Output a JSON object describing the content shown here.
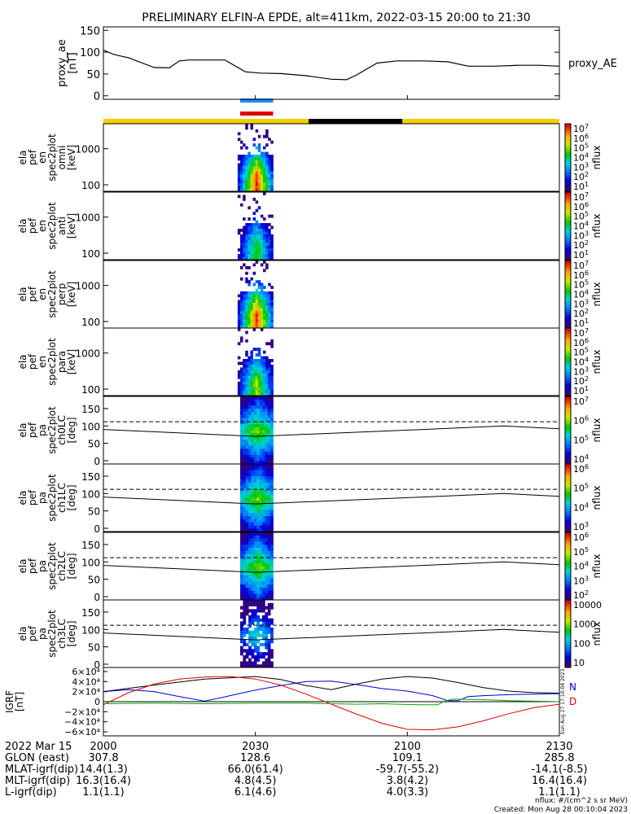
{
  "chart_data": {
    "type": "line",
    "title": "PRELIMINARY ELFIN-A EPDE, alt=411km, 2022-03-15 20:00 to 21:30",
    "x_ticks": [
      "2000",
      "2030",
      "2100",
      "2130"
    ],
    "x_minutes": [
      0,
      30,
      60,
      90
    ],
    "proxy_ae": {
      "ylabel_lines": [
        "proxy_ae",
        "[nT]"
      ],
      "yticks": [
        "0",
        "50",
        "100",
        "150"
      ],
      "ytick_values": [
        0,
        50,
        100,
        150
      ],
      "ylim": [
        -8,
        158
      ],
      "legend": "proxy_AE",
      "series": [
        {
          "name": "proxy_AE",
          "x": [
            0,
            2,
            5,
            10,
            13,
            15,
            17,
            20,
            24,
            28,
            31,
            35,
            40,
            45,
            48,
            50,
            54,
            58,
            63,
            68,
            72,
            77,
            82,
            86,
            90
          ],
          "y": [
            105,
            95,
            87,
            65,
            64,
            80,
            82,
            82,
            82,
            55,
            52,
            51,
            46,
            38,
            37,
            48,
            75,
            80,
            80,
            78,
            68,
            68,
            70,
            70,
            68
          ]
        }
      ]
    },
    "orbit_bars": {
      "yellow_spans": [
        [
          0,
          40.5
        ],
        [
          59,
          90
        ]
      ],
      "black_spans": [
        [
          40.5,
          59
        ]
      ],
      "science_blue": [
        27,
        33.5
      ],
      "science_red": [
        27,
        33.5
      ]
    },
    "spectrograms": [
      {
        "label_lines": [
          "ela",
          "pef",
          "en",
          "spec2plot",
          "omni",
          "[keV]"
        ],
        "yticks": [
          "100",
          "1000"
        ],
        "ytick_values": [
          100,
          1000
        ],
        "colorbar": [
          "10^1",
          "10^2",
          "10^3",
          "10^4",
          "10^5",
          "10^6",
          "10^7"
        ],
        "colorbar_label": "nflux"
      },
      {
        "label_lines": [
          "ela",
          "pef",
          "en",
          "spec2plot",
          "anti",
          "[keV]"
        ],
        "yticks": [
          "100",
          "1000"
        ],
        "ytick_values": [
          100,
          1000
        ],
        "colorbar": [
          "10^1",
          "10^2",
          "10^3",
          "10^4",
          "10^5",
          "10^6",
          "10^7"
        ],
        "colorbar_label": "nflux"
      },
      {
        "label_lines": [
          "ela",
          "pef",
          "en",
          "spec2plot",
          "perp",
          "[keV]"
        ],
        "yticks": [
          "100",
          "1000"
        ],
        "ytick_values": [
          100,
          1000
        ],
        "colorbar": [
          "10^1",
          "10^2",
          "10^3",
          "10^4",
          "10^5",
          "10^6",
          "10^7"
        ],
        "colorbar_label": "nflux"
      },
      {
        "label_lines": [
          "ela",
          "pef",
          "en",
          "spec2plot",
          "para",
          "[keV]"
        ],
        "yticks": [
          "100",
          "1000"
        ],
        "ytick_values": [
          100,
          1000
        ],
        "colorbar": [
          "10^1",
          "10^2",
          "10^3",
          "10^4",
          "10^5",
          "10^6",
          "10^7"
        ],
        "colorbar_label": "nflux"
      }
    ],
    "pitch_angle": [
      {
        "label_lines": [
          "ela",
          "pef",
          "pa",
          "spec2plot",
          "ch0LC",
          "[deg]"
        ],
        "yticks": [
          "0",
          "50",
          "100",
          "150"
        ],
        "colorbar": [
          "10^4",
          "10^5",
          "10^6",
          "10^7"
        ],
        "colorbar_label": "nflux"
      },
      {
        "label_lines": [
          "ela",
          "pef",
          "pa",
          "spec2plot",
          "ch1LC",
          "[deg]"
        ],
        "yticks": [
          "0",
          "50",
          "100",
          "150"
        ],
        "colorbar": [
          "10^3",
          "10^4",
          "10^5",
          "10^6"
        ],
        "colorbar_label": "nflux"
      },
      {
        "label_lines": [
          "ela",
          "pef",
          "pa",
          "spec2plot",
          "ch2LC",
          "[deg]"
        ],
        "yticks": [
          "0",
          "50",
          "100",
          "150"
        ],
        "colorbar": [
          "10^2",
          "10^3",
          "10^4",
          "10^5",
          "10^6"
        ],
        "colorbar_label": "nflux"
      },
      {
        "label_lines": [
          "ela",
          "pef",
          "pa",
          "spec2plot",
          "ch3LC",
          "[deg]"
        ],
        "yticks": [
          "0",
          "50",
          "100",
          "150"
        ],
        "colorbar": [
          "10",
          "100",
          "1000",
          "10000"
        ],
        "colorbar_label": "nflux"
      }
    ],
    "loss_cone": {
      "solid_x": [
        0,
        30,
        60,
        79,
        90
      ],
      "solid_y": [
        90,
        70,
        88,
        100,
        92
      ],
      "dashed_y": 112
    },
    "igrf": {
      "ylabel_lines": [
        "IGRF",
        "[nT]"
      ],
      "yticks": [
        "6×10⁴",
        "4×10⁴",
        "2×10⁴",
        "0",
        "−2×10⁴",
        "−4×10⁴",
        "−6×10⁴"
      ],
      "ytick_values": [
        60000,
        40000,
        20000,
        0,
        -20000,
        -40000,
        -60000
      ],
      "ylim": [
        -68000,
        68000
      ],
      "legend": [
        "N",
        "D"
      ],
      "side_stamp": "Sun Aug 27 17:10:04 2023",
      "series": [
        {
          "name": "black",
          "color": "#000000",
          "x": [
            0,
            10,
            20,
            30,
            35,
            40,
            45,
            50,
            55,
            60,
            65,
            70,
            75,
            80,
            85,
            90
          ],
          "y": [
            20000,
            33000,
            45000,
            50000,
            44000,
            32000,
            24000,
            35000,
            45000,
            50000,
            47000,
            38000,
            28000,
            21000,
            18000,
            17000
          ]
        },
        {
          "name": "blue",
          "color": "#0000cc",
          "x": [
            0,
            5,
            10,
            15,
            20,
            25,
            30,
            35,
            40,
            45,
            50,
            55,
            60,
            65,
            68,
            70,
            72,
            75,
            80,
            85,
            90
          ],
          "y": [
            20000,
            24000,
            20000,
            10000,
            1000,
            12000,
            23000,
            32000,
            40000,
            41000,
            34000,
            26000,
            21000,
            12000,
            2000,
            2000,
            10000,
            12000,
            14000,
            15000,
            16000
          ]
        },
        {
          "name": "red",
          "color": "#dd0000",
          "x": [
            0,
            5,
            10,
            15,
            20,
            25,
            30,
            35,
            40,
            45,
            50,
            55,
            60,
            65,
            70,
            75,
            80,
            85,
            90
          ],
          "y": [
            -6000,
            18000,
            35000,
            45000,
            49000,
            50000,
            45000,
            33000,
            15000,
            -5000,
            -25000,
            -43000,
            -55000,
            -56000,
            -50000,
            -38000,
            -24000,
            -12000,
            -5000
          ]
        },
        {
          "name": "green",
          "color": "#00aa00",
          "x": [
            0,
            10,
            20,
            30,
            40,
            50,
            55,
            58,
            62,
            66,
            67.5,
            69,
            75,
            80,
            85,
            90
          ],
          "y": [
            -4000,
            -3000,
            -4000,
            -3000,
            -3000,
            -5000,
            -4000,
            -5000,
            -6000,
            -6000,
            2000,
            5000,
            4000,
            2000,
            1000,
            0
          ]
        }
      ]
    },
    "ephemeris": {
      "header": [
        "2022 Mar 15",
        "2000",
        "2030",
        "2100",
        "2130"
      ],
      "rows": [
        {
          "label": "GLON (east)",
          "values": [
            "307.8",
            "128.6",
            "109.1",
            "285.8"
          ]
        },
        {
          "label": "MLAT-igrf(dip)",
          "values": [
            "14.4(1.3)",
            "66.0(61.4)",
            "-59.7(-55.2)",
            "-14.1(-8.5)"
          ]
        },
        {
          "label": "MLT-igrf(dip)",
          "values": [
            "16.3(16.4)",
            "4.8(4.5)",
            "3.8(4.2)",
            "16.4(16.4)"
          ]
        },
        {
          "label": "L-igrf(dip)",
          "values": [
            "1.1(1.1)",
            "6.1(4.6)",
            "4.0(3.3)",
            "1.1(1.1)"
          ]
        }
      ]
    },
    "footer": [
      "nflux: #/(cm^2 s sr MeV)",
      "Created: Mon Aug 28 00:10:04 2023"
    ]
  }
}
